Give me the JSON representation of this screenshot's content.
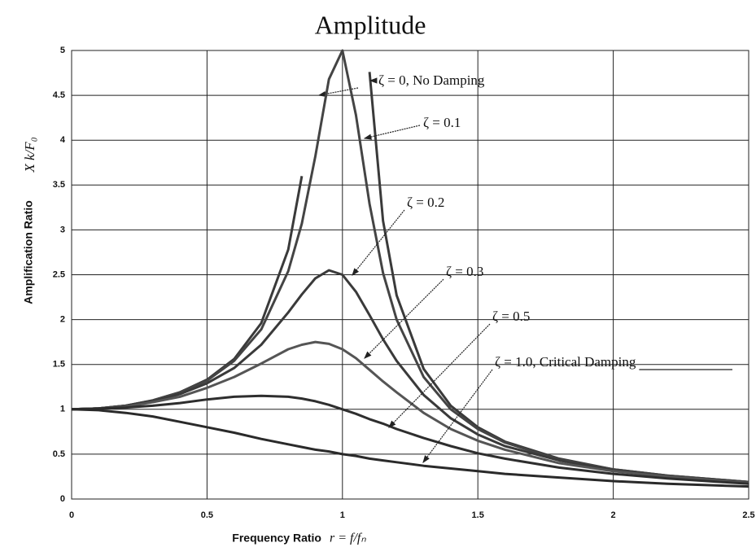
{
  "chart_data": {
    "type": "line",
    "title": "Amplitude",
    "x_label": "Frequency Ratio",
    "x_formula": "r = f/fₙ",
    "y_label": "Amplification Ratio",
    "y_formula": "X k/F₀",
    "x": [
      0,
      0.1,
      0.2,
      0.3,
      0.4,
      0.5,
      0.6,
      0.7,
      0.8,
      0.85,
      0.9,
      0.95,
      1.0,
      1.05,
      1.1,
      1.15,
      1.2,
      1.3,
      1.4,
      1.5,
      1.6,
      1.8,
      2.0,
      2.2,
      2.5
    ],
    "series": [
      {
        "name": "ζ = 0, No Damping",
        "color": "#3a3a3a",
        "values": [
          1,
          1.01,
          1.04,
          1.1,
          1.19,
          1.33,
          1.56,
          1.96,
          2.78,
          3.6,
          null,
          null,
          null,
          null,
          4.76,
          3.1,
          2.27,
          1.45,
          1.04,
          0.8,
          0.64,
          0.45,
          0.33,
          0.26,
          0.19
        ]
      },
      {
        "name": "ζ = 0.1",
        "color": "#444444",
        "values": [
          1,
          1.01,
          1.04,
          1.1,
          1.19,
          1.32,
          1.54,
          1.89,
          2.54,
          3.07,
          3.82,
          4.68,
          5.0,
          4.28,
          3.29,
          2.52,
          2.0,
          1.36,
          1.0,
          0.78,
          0.63,
          0.44,
          0.33,
          0.26,
          0.19
        ]
      },
      {
        "name": "ζ = 0.2",
        "color": "#3a3a3a",
        "values": [
          1,
          1.01,
          1.04,
          1.09,
          1.17,
          1.29,
          1.46,
          1.72,
          2.08,
          2.28,
          2.46,
          2.55,
          2.5,
          2.31,
          2.05,
          1.78,
          1.54,
          1.16,
          0.9,
          0.72,
          0.59,
          0.43,
          0.32,
          0.25,
          0.19
        ]
      },
      {
        "name": "ζ = 0.3",
        "color": "#555555",
        "values": [
          1,
          1.01,
          1.03,
          1.08,
          1.14,
          1.24,
          1.36,
          1.51,
          1.67,
          1.72,
          1.75,
          1.73,
          1.67,
          1.57,
          1.44,
          1.31,
          1.19,
          0.96,
          0.78,
          0.65,
          0.55,
          0.4,
          0.31,
          0.25,
          0.18
        ]
      },
      {
        "name": "ζ = 0.5",
        "color": "#2e2e2e",
        "values": [
          1,
          1.01,
          1.02,
          1.04,
          1.07,
          1.11,
          1.14,
          1.15,
          1.14,
          1.12,
          1.09,
          1.05,
          1.0,
          0.95,
          0.89,
          0.84,
          0.78,
          0.68,
          0.59,
          0.51,
          0.45,
          0.35,
          0.28,
          0.23,
          0.17
        ]
      },
      {
        "name": "ζ = 1.0, Critical Damping",
        "color": "#2a2a2a",
        "values": [
          1,
          0.99,
          0.96,
          0.92,
          0.86,
          0.8,
          0.74,
          0.67,
          0.61,
          0.58,
          0.55,
          0.53,
          0.5,
          0.48,
          0.45,
          0.43,
          0.41,
          0.37,
          0.34,
          0.31,
          0.28,
          0.24,
          0.2,
          0.17,
          0.14
        ]
      }
    ],
    "xlim": [
      0,
      2.5
    ],
    "xticks": [
      0,
      0.5,
      1,
      1.5,
      2,
      2.5
    ],
    "ylim": [
      0,
      5
    ],
    "yticks": [
      0,
      0.5,
      1,
      1.5,
      2,
      2.5,
      3,
      3.5,
      4,
      4.5,
      5
    ],
    "grid": true
  }
}
